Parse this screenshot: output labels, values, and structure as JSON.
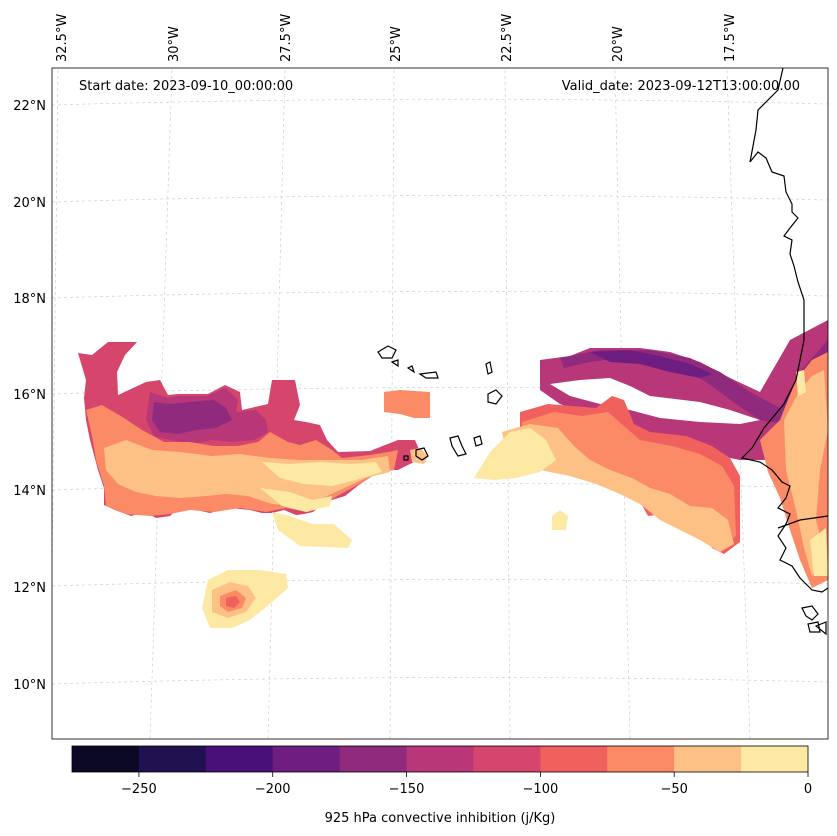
{
  "map": {
    "start_label": "Start date: 2023-09-10_00:00:00",
    "valid_label": "Valid_date: 2023-09-12T13:00:00.00",
    "lon_labels": [
      "32.5°W",
      "30°W",
      "27.5°W",
      "25°W",
      "22.5°W",
      "20°W",
      "17.5°W"
    ],
    "lat_labels": [
      "22°N",
      "20°N",
      "18°N",
      "16°N",
      "14°N",
      "12°N",
      "10°N"
    ]
  },
  "colorbar": {
    "title": "925 hPa convective inhibition (j/Kg)",
    "tick_labels": [
      "−250",
      "−200",
      "−150",
      "−100",
      "−50",
      "0"
    ],
    "levels": [
      -275,
      -250,
      -225,
      -200,
      -175,
      -150,
      -125,
      -100,
      -75,
      -50,
      -25,
      0
    ],
    "colors": [
      "#0b0924",
      "#221150",
      "#4a1079",
      "#6e1e81",
      "#8f2a7c",
      "#b73779",
      "#d6456c",
      "#f0605d",
      "#fb8b67",
      "#fec185",
      "#fde9a4"
    ]
  },
  "colors": {
    "coast": "#000000",
    "grid": "#cccccc"
  }
}
